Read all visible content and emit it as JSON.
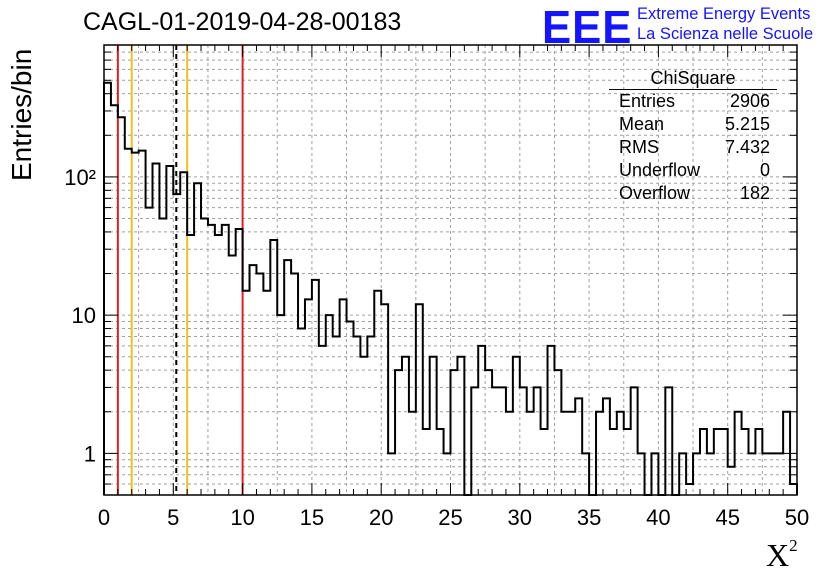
{
  "title": "CAGL-01-2019-04-28-00183",
  "logo": {
    "mark": "EEE",
    "line1": "Extreme Energy Events",
    "line2": "La Scienza nelle Scuole"
  },
  "stats_box": {
    "title": "ChiSquare",
    "rows": [
      {
        "label": "Entries",
        "value": "2906"
      },
      {
        "label": "Mean",
        "value": "5.215"
      },
      {
        "label": "RMS",
        "value": "7.432"
      },
      {
        "label": "Underflow",
        "value": "0"
      },
      {
        "label": "Overflow",
        "value": "182"
      }
    ]
  },
  "colors": {
    "histogram": "#000000",
    "red_lines": "#e02020",
    "yellow_lines": "#f0c020",
    "mean_line": "#000000",
    "logo": "#1414ff",
    "grid": "#a0a0a0"
  },
  "chart_data": {
    "type": "histogram",
    "title": "CAGL-01-2019-04-28-00183",
    "xlabel": "X²",
    "ylabel": "Entries/bin",
    "xlim": [
      0,
      50
    ],
    "ylim": [
      0.5,
      900
    ],
    "yscale": "log",
    "grid": true,
    "bin_width": 0.5,
    "x_ticks": [
      "0",
      "5",
      "10",
      "15",
      "20",
      "25",
      "30",
      "35",
      "40",
      "45",
      "50"
    ],
    "y_ticks": [
      "1",
      "10",
      "10²"
    ],
    "values": [
      480,
      330,
      270,
      160,
      150,
      155,
      60,
      125,
      50,
      120,
      75,
      108,
      38,
      90,
      50,
      45,
      38,
      45,
      27,
      42,
      15,
      23,
      20,
      15,
      35,
      10,
      25,
      20,
      8,
      13,
      18,
      6,
      10,
      7,
      13,
      9,
      7,
      5,
      7,
      15,
      12,
      1,
      4,
      5,
      2,
      12,
      1.5,
      5,
      1.5,
      1,
      4,
      5,
      0,
      3,
      6,
      4,
      3,
      3,
      2,
      5,
      3,
      2,
      3,
      1.5,
      6,
      4,
      2,
      2,
      2.5,
      1,
      0,
      2,
      2.5,
      1.5,
      2,
      1.5,
      3,
      1,
      0,
      1,
      0,
      3,
      0,
      1,
      0.6,
      1,
      1.5,
      1,
      1.5,
      1.5,
      0.8,
      2,
      1.5,
      1,
      1.5,
      1,
      1,
      1,
      2,
      0.6
    ],
    "vertical_lines": [
      {
        "x": 1,
        "color": "red",
        "style": "solid"
      },
      {
        "x": 2,
        "color": "yellow",
        "style": "solid"
      },
      {
        "x": 5.215,
        "color": "black",
        "style": "dashed"
      },
      {
        "x": 6,
        "color": "yellow",
        "style": "solid"
      },
      {
        "x": 10,
        "color": "red",
        "style": "solid"
      }
    ]
  }
}
